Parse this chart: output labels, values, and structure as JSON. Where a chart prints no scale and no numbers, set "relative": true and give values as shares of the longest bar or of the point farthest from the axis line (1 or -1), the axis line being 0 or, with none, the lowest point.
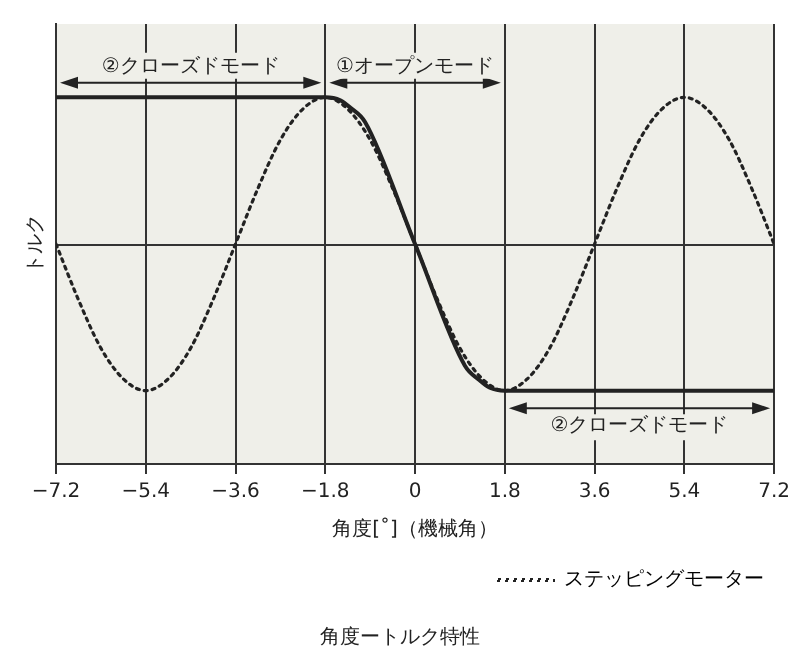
{
  "chart_data": {
    "type": "line",
    "relative": true,
    "title": "角度ートルク特性",
    "xlabel": "角度[˚]（機械角）",
    "ylabel": "トルク",
    "xlim": [
      -7.2,
      7.2
    ],
    "xticks": [
      {
        "value": -7.2,
        "label": "−7.2"
      },
      {
        "value": -5.4,
        "label": "−5.4"
      },
      {
        "value": -3.6,
        "label": "−3.6"
      },
      {
        "value": -1.8,
        "label": "−1.8"
      },
      0,
      1.8,
      3.6,
      5.4,
      7.2
    ],
    "grid": "x",
    "legend": "bottom right",
    "series": [
      {
        "color": "#222222",
        "line_style": "solid",
        "x": [
          -7.2,
          -1.8,
          -1.5,
          -1.3,
          -1.0,
          0,
          1.0,
          1.3,
          1.5,
          1.8,
          7.2
        ],
        "values": [
          1,
          1,
          0.98,
          0.93,
          0.83,
          0,
          -0.83,
          -0.93,
          -0.98,
          -1,
          -1
        ]
      },
      {
        "name": "ステッピングモーター",
        "color": "#222222",
        "line_style": "dotted",
        "x": [
          -7.2,
          -6.75,
          -6.3,
          -5.85,
          -5.4,
          -4.95,
          -4.5,
          -4.05,
          -3.6,
          -3.15,
          -2.7,
          -2.25,
          -1.8,
          -1.35,
          -0.9,
          -0.45,
          0,
          0.45,
          0.9,
          1.35,
          1.8,
          2.25,
          2.7,
          3.15,
          3.6,
          4.05,
          4.5,
          4.95,
          5.4,
          5.85,
          6.3,
          6.75,
          7.2
        ],
        "values": [
          0,
          -0.38,
          -0.71,
          -0.92,
          -1,
          -0.92,
          -0.71,
          -0.38,
          0,
          0.38,
          0.71,
          0.92,
          1,
          0.92,
          0.71,
          0.38,
          0,
          -0.38,
          -0.71,
          -0.92,
          -1,
          -0.92,
          -0.71,
          -0.38,
          0,
          0.38,
          0.71,
          0.92,
          1,
          0.92,
          0.71,
          0.38,
          0
        ]
      }
    ],
    "bands": [
      {
        "axis": "x",
        "from": -7.2,
        "to": -1.8,
        "label": "②クローズドモード",
        "color": "#efefe9"
      },
      {
        "axis": "x",
        "from": -1.8,
        "to": 1.8,
        "label": "①オープンモード",
        "color": "#efefe9"
      },
      {
        "axis": "x",
        "from": 1.8,
        "to": 7.2,
        "label": "②クローズドモード",
        "color": "#efefe9"
      }
    ]
  }
}
